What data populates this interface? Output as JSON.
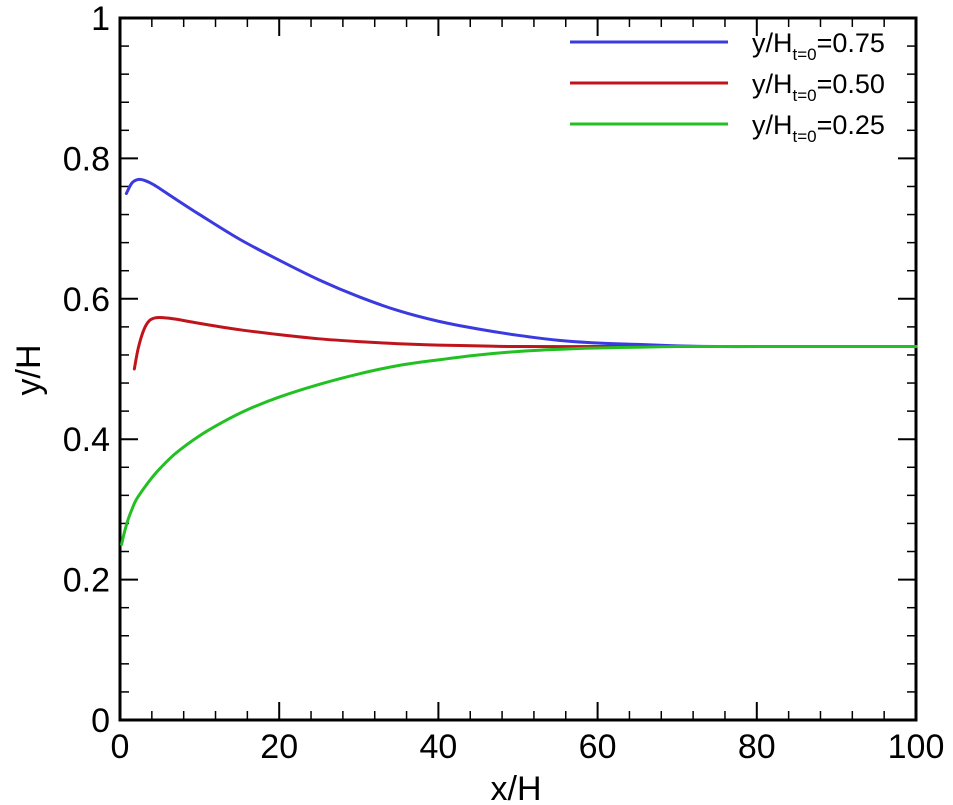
{
  "chart_data": {
    "type": "line",
    "xlabel": "x/H",
    "ylabel": "y/H",
    "xlim": [
      0,
      100
    ],
    "ylim": [
      0,
      1
    ],
    "x_ticks": [
      0,
      20,
      40,
      60,
      80,
      100
    ],
    "x_tick_labels": [
      "0",
      "20",
      "40",
      "60",
      "80",
      "100"
    ],
    "y_ticks": [
      0,
      0.2,
      0.4,
      0.6,
      0.8,
      1
    ],
    "y_tick_labels": [
      "0",
      "0.2",
      "0.4",
      "0.6",
      "0.8",
      "1"
    ],
    "grid": false,
    "legend_position": "top-right",
    "series": [
      {
        "legend_main": "y/H",
        "legend_sub": "t=0",
        "legend_value": "=0.75",
        "color": "#3a3ae0",
        "x": [
          0.8,
          1.5,
          2.3,
          3,
          4,
          5,
          7,
          10,
          15,
          20,
          25,
          30,
          35,
          40,
          45,
          50,
          55,
          60,
          65,
          70,
          75,
          80,
          85,
          90,
          95,
          100
        ],
        "y": [
          0.75,
          0.765,
          0.77,
          0.769,
          0.764,
          0.757,
          0.742,
          0.72,
          0.685,
          0.655,
          0.627,
          0.603,
          0.583,
          0.568,
          0.557,
          0.548,
          0.541,
          0.537,
          0.535,
          0.533,
          0.532,
          0.532,
          0.532,
          0.532,
          0.532,
          0.532
        ]
      },
      {
        "legend_main": "y/H",
        "legend_sub": "t=0",
        "legend_value": "=0.50",
        "color": "#c0141c",
        "x": [
          1.8,
          2.3,
          3,
          3.7,
          4.5,
          5.5,
          7,
          10,
          15,
          20,
          25,
          30,
          35,
          40,
          45,
          50,
          60,
          70,
          80,
          90,
          100
        ],
        "y": [
          0.5,
          0.53,
          0.556,
          0.569,
          0.573,
          0.573,
          0.571,
          0.565,
          0.556,
          0.549,
          0.543,
          0.539,
          0.536,
          0.534,
          0.533,
          0.532,
          0.532,
          0.532,
          0.532,
          0.532,
          0.532
        ]
      },
      {
        "legend_main": "y/H",
        "legend_sub": "t=0",
        "legend_value": "=0.25",
        "color": "#22c022",
        "x": [
          0.2,
          0.5,
          1,
          1.5,
          2,
          3,
          4,
          5,
          7,
          10,
          13,
          16,
          20,
          25,
          30,
          35,
          40,
          45,
          50,
          55,
          60,
          65,
          70,
          75,
          80,
          90,
          100
        ],
        "y": [
          0.25,
          0.265,
          0.285,
          0.3,
          0.313,
          0.33,
          0.345,
          0.358,
          0.38,
          0.405,
          0.425,
          0.442,
          0.46,
          0.478,
          0.493,
          0.505,
          0.513,
          0.52,
          0.525,
          0.528,
          0.53,
          0.531,
          0.532,
          0.532,
          0.532,
          0.532,
          0.532
        ]
      }
    ]
  }
}
